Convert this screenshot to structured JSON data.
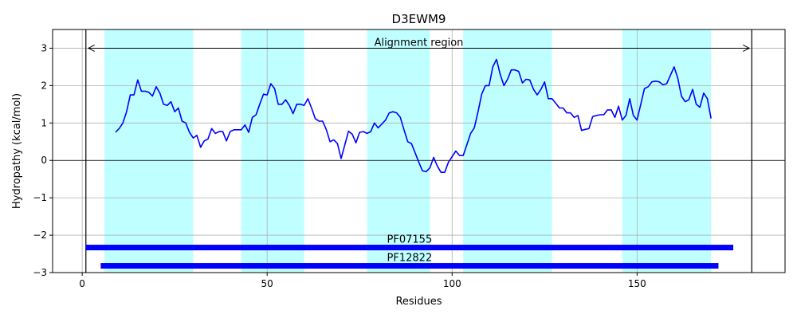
{
  "chart_data": {
    "type": "line",
    "title": "D3EWM9",
    "xlabel": "Residues",
    "ylabel": "Hydropathy (kcal/mol)",
    "xlim": [
      -8,
      190
    ],
    "ylim": [
      -3,
      3.5
    ],
    "xticks": [
      0,
      50,
      100,
      150
    ],
    "yticks": [
      -3,
      -2,
      -1,
      0,
      1,
      2,
      3
    ],
    "grid": true,
    "colors": {
      "line": "#0000ff",
      "band": "#c0ffff",
      "domain": "#0000ff",
      "axis": "#000000",
      "grid": "#b0b0b0"
    },
    "shaded_regions": [
      [
        6,
        30
      ],
      [
        43,
        60
      ],
      [
        77,
        94
      ],
      [
        103,
        127
      ],
      [
        146,
        170
      ]
    ],
    "alignment_region": {
      "label": "Alignment region",
      "start": 1,
      "end": 181
    },
    "domains": [
      {
        "name": "PF07155",
        "start": 1,
        "end": 176,
        "y": -2.33
      },
      {
        "name": "PF12822",
        "start": 5,
        "end": 172,
        "y": -2.82
      }
    ],
    "series": [
      {
        "name": "hydropathy",
        "x": [
          9,
          10,
          11,
          12,
          13,
          14,
          15,
          16,
          17,
          18,
          19,
          20,
          21,
          22,
          23,
          24,
          25,
          26,
          27,
          28,
          29,
          30,
          31,
          32,
          33,
          34,
          35,
          36,
          37,
          38,
          39,
          40,
          41,
          42,
          43,
          44,
          45,
          46,
          47,
          48,
          49,
          50,
          51,
          52,
          53,
          54,
          55,
          56,
          57,
          58,
          59,
          60,
          61,
          62,
          63,
          64,
          65,
          66,
          67,
          68,
          69,
          70,
          71,
          72,
          73,
          74,
          75,
          76,
          77,
          78,
          79,
          80,
          81,
          82,
          83,
          84,
          85,
          86,
          87,
          88,
          89,
          90,
          91,
          92,
          93,
          94,
          95,
          96,
          97,
          98,
          99,
          100,
          101,
          102,
          103,
          104,
          105,
          106,
          107,
          108,
          109,
          110,
          111,
          112,
          113,
          114,
          115,
          116,
          117,
          118,
          119,
          120,
          121,
          122,
          123,
          124,
          125,
          126,
          127,
          128,
          129,
          130,
          131,
          132,
          133,
          134,
          135,
          136,
          137,
          138,
          139,
          140,
          141,
          142,
          143,
          144,
          145,
          146,
          147,
          148,
          149,
          150,
          151,
          152,
          153,
          154,
          155,
          156,
          157,
          158,
          159,
          160,
          161,
          162,
          163,
          164,
          165,
          166,
          167,
          168,
          169,
          170
        ],
        "values": [
          0.75,
          0.85,
          1.0,
          1.3,
          1.75,
          1.75,
          2.15,
          1.85,
          1.85,
          1.82,
          1.72,
          1.97,
          1.8,
          1.5,
          1.47,
          1.57,
          1.3,
          1.4,
          1.05,
          1.0,
          0.75,
          0.6,
          0.67,
          0.35,
          0.52,
          0.57,
          0.85,
          0.72,
          0.77,
          0.77,
          0.52,
          0.77,
          0.82,
          0.82,
          0.82,
          0.95,
          0.75,
          1.15,
          1.22,
          1.5,
          1.77,
          1.75,
          2.05,
          1.92,
          1.5,
          1.5,
          1.62,
          1.47,
          1.25,
          1.5,
          1.5,
          1.47,
          1.65,
          1.4,
          1.12,
          1.05,
          1.05,
          0.82,
          0.5,
          0.55,
          0.45,
          0.05,
          0.42,
          0.78,
          0.7,
          0.47,
          0.75,
          0.77,
          0.72,
          0.77,
          1.0,
          0.87,
          0.97,
          1.08,
          1.27,
          1.3,
          1.27,
          1.15,
          0.82,
          0.5,
          0.45,
          0.2,
          -0.05,
          -0.28,
          -0.3,
          -0.2,
          0.08,
          -0.15,
          -0.32,
          -0.32,
          -0.05,
          0.1,
          0.25,
          0.13,
          0.13,
          0.42,
          0.72,
          0.87,
          1.3,
          1.77,
          2.0,
          2.0,
          2.5,
          2.7,
          2.3,
          2.0,
          2.17,
          2.42,
          2.42,
          2.38,
          2.07,
          2.17,
          2.15,
          1.9,
          1.75,
          1.9,
          2.1,
          1.65,
          1.65,
          1.53,
          1.4,
          1.4,
          1.27,
          1.27,
          1.15,
          1.2,
          0.8,
          0.83,
          0.85,
          1.17,
          1.2,
          1.22,
          1.22,
          1.35,
          1.35,
          1.15,
          1.45,
          1.08,
          1.2,
          1.65,
          1.2,
          1.08,
          1.5,
          1.92,
          1.97,
          2.1,
          2.12,
          2.1,
          2.02,
          2.05,
          2.27,
          2.5,
          2.2,
          1.72,
          1.57,
          1.62,
          1.9,
          1.5,
          1.42,
          1.8,
          1.65,
          1.12
        ]
      }
    ]
  }
}
